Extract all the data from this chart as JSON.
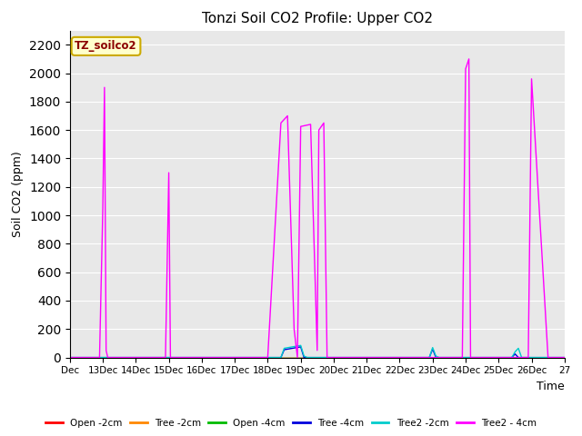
{
  "title": "Tonzi Soil CO2 Profile: Upper CO2",
  "xlabel": "Time",
  "ylabel": "Soil CO2 (ppm)",
  "ylim": [
    0,
    2300
  ],
  "yticks": [
    0,
    200,
    400,
    600,
    800,
    1000,
    1200,
    1400,
    1600,
    1800,
    2000,
    2200
  ],
  "bg_color": "#e8e8e8",
  "legend_label": "TZ_soilco2",
  "series": {
    "Open_2cm": {
      "color": "#ff0000",
      "label": "Open -2cm",
      "points": [
        [
          12,
          0
        ],
        [
          27,
          0
        ]
      ]
    },
    "Tree_2cm": {
      "color": "#ff8800",
      "label": "Tree -2cm",
      "points": [
        [
          12,
          0
        ],
        [
          27,
          0
        ]
      ]
    },
    "Open_4cm": {
      "color": "#00bb00",
      "label": "Open -4cm",
      "points": [
        [
          12,
          0
        ],
        [
          27,
          0
        ]
      ]
    },
    "Tree_4cm": {
      "color": "#0000dd",
      "label": "Tree -4cm",
      "points": [
        [
          12,
          0
        ],
        [
          18.4,
          0
        ],
        [
          18.5,
          55
        ],
        [
          19.0,
          75
        ],
        [
          19.1,
          0
        ],
        [
          22.9,
          0
        ],
        [
          23.0,
          60
        ],
        [
          23.1,
          0
        ],
        [
          25.4,
          0
        ],
        [
          25.5,
          25
        ],
        [
          25.6,
          0
        ],
        [
          27,
          0
        ]
      ]
    },
    "Tree2_2cm": {
      "color": "#00cccc",
      "label": "Tree2 -2cm",
      "points": [
        [
          12,
          0
        ],
        [
          18.4,
          0
        ],
        [
          18.5,
          65
        ],
        [
          19.0,
          85
        ],
        [
          19.1,
          10
        ],
        [
          19.2,
          0
        ],
        [
          22.9,
          0
        ],
        [
          23.0,
          70
        ],
        [
          23.1,
          10
        ],
        [
          23.2,
          0
        ],
        [
          25.4,
          0
        ],
        [
          25.5,
          40
        ],
        [
          25.6,
          65
        ],
        [
          25.7,
          0
        ],
        [
          27,
          0
        ]
      ]
    },
    "Tree2_4cm": {
      "color": "#ff00ff",
      "label": "Tree2 - 4cm",
      "points": [
        [
          12,
          0
        ],
        [
          12.9,
          0
        ],
        [
          13.0,
          1050
        ],
        [
          13.05,
          1900
        ],
        [
          13.1,
          50
        ],
        [
          13.15,
          0
        ],
        [
          14.9,
          0
        ],
        [
          15.0,
          1300
        ],
        [
          15.05,
          0
        ],
        [
          17.9,
          0
        ],
        [
          18.0,
          0
        ],
        [
          18.4,
          1650
        ],
        [
          18.6,
          1700
        ],
        [
          18.8,
          200
        ],
        [
          18.9,
          0
        ],
        [
          19.0,
          1625
        ],
        [
          19.3,
          1640
        ],
        [
          19.5,
          50
        ],
        [
          19.55,
          1600
        ],
        [
          19.7,
          1650
        ],
        [
          19.8,
          0
        ],
        [
          23.9,
          0
        ],
        [
          24.0,
          2030
        ],
        [
          24.1,
          2100
        ],
        [
          24.15,
          0
        ],
        [
          25.9,
          0
        ],
        [
          26.0,
          1960
        ],
        [
          26.5,
          0
        ],
        [
          27,
          0
        ]
      ]
    }
  },
  "xtick_positions": [
    12,
    13,
    14,
    15,
    16,
    17,
    18,
    19,
    20,
    21,
    22,
    23,
    24,
    25,
    26,
    27
  ],
  "xtick_labels": [
    "Dec",
    "13Dec",
    "14Dec",
    "15Dec",
    "16Dec",
    "17Dec",
    "18Dec",
    "19Dec",
    "20Dec",
    "21Dec",
    "22Dec",
    "23Dec",
    "24Dec",
    "25Dec",
    "26Dec",
    "27"
  ]
}
